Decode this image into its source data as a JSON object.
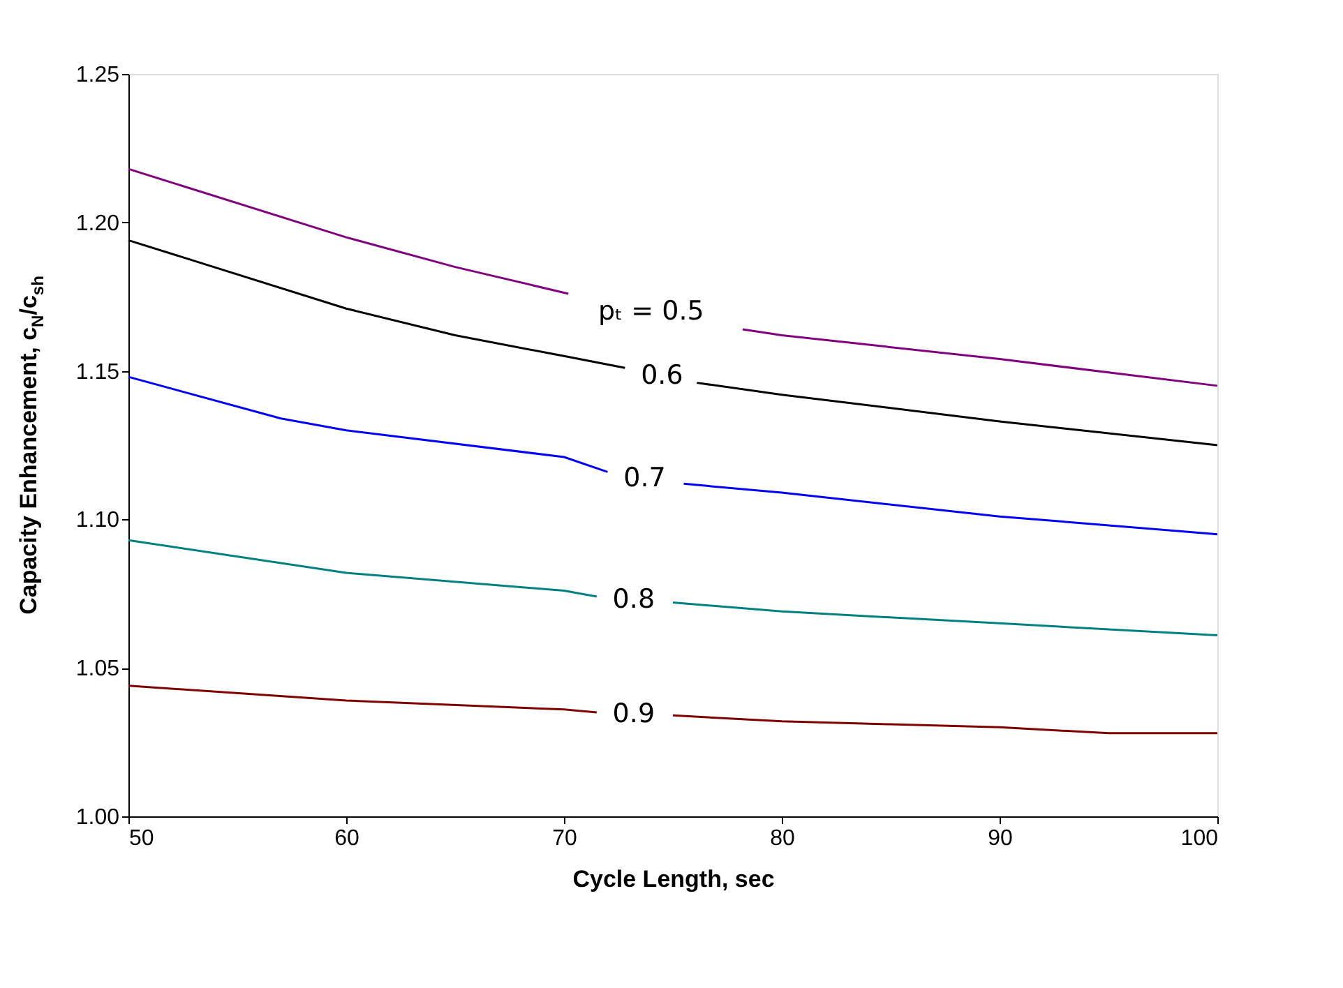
{
  "chart_data": {
    "type": "line",
    "xlabel": "Cycle Length, sec",
    "ylabel": "Capacity Enhancement, c$_{N}$/c$_{sh}$",
    "xlim": [
      50,
      100
    ],
    "xticks": [
      50,
      60,
      70,
      80,
      90,
      100
    ],
    "ylim": [
      1.0,
      1.25
    ],
    "yticks": [
      {
        "value": 1.0,
        "label": "1.00"
      },
      {
        "value": 1.05,
        "label": "1.05"
      },
      {
        "value": 1.1,
        "label": "1.10"
      },
      {
        "value": 1.15,
        "label": "1.15"
      },
      {
        "value": 1.2,
        "label": "1.20"
      },
      {
        "value": 1.25,
        "label": "1.25"
      }
    ],
    "grid": false,
    "marker": "none",
    "line_style": "solid",
    "series": [
      {
        "color": "#800080",
        "x": [
          50,
          60,
          65,
          70.2,
          74,
          78.2,
          80,
          90,
          100
        ],
        "values": [
          1.218,
          1.195,
          1.185,
          1.176,
          null,
          1.164,
          1.162,
          1.154,
          1.145
        ]
      },
      {
        "color": "#000000",
        "x": [
          50,
          60,
          65,
          70,
          72.8,
          74.5,
          76.1,
          80,
          90,
          100
        ],
        "values": [
          1.194,
          1.171,
          1.162,
          1.155,
          1.151,
          null,
          1.146,
          1.142,
          1.133,
          1.125
        ]
      },
      {
        "color": "#0000ff",
        "x": [
          50,
          57,
          60,
          70,
          72,
          73.7,
          75.5,
          80,
          90,
          100
        ],
        "values": [
          1.148,
          1.134,
          1.13,
          1.121,
          1.116,
          null,
          1.112,
          1.109,
          1.101,
          1.095
        ]
      },
      {
        "color": "#008080",
        "x": [
          50,
          60,
          70,
          71.5,
          73.2,
          75,
          80,
          90,
          100
        ],
        "values": [
          1.093,
          1.082,
          1.076,
          1.074,
          null,
          1.072,
          1.069,
          1.065,
          1.061
        ]
      },
      {
        "color": "#800000",
        "x": [
          50,
          60,
          70,
          71.5,
          73.2,
          75,
          80,
          85,
          90,
          95,
          100
        ],
        "values": [
          1.044,
          1.039,
          1.036,
          1.035,
          null,
          1.034,
          1.032,
          1.031,
          1.03,
          1.028,
          1.028
        ]
      }
    ],
    "annotations": [
      "pₜ = 0.5",
      "0.6",
      "0.7",
      "0.8",
      "0.9"
    ]
  }
}
